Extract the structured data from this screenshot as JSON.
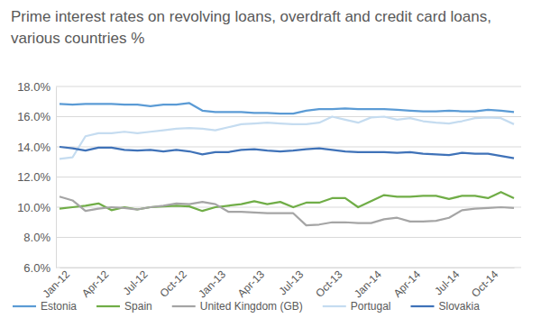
{
  "chart_data": {
    "type": "line",
    "title": "Prime interest rates on revolving loans, overdraft and credit card loans, various countries %",
    "categories": [
      "Jan-12",
      null,
      null,
      "Apr-12",
      null,
      null,
      "Jul-12",
      null,
      null,
      "Oct-12",
      null,
      null,
      "Jan-13",
      null,
      null,
      "Apr-13",
      null,
      null,
      "Jul-13",
      null,
      null,
      "Oct-13",
      null,
      null,
      "Jan-14",
      null,
      null,
      "Apr-14",
      null,
      null,
      "Jul-14",
      null,
      null,
      "Oct-14",
      null,
      null
    ],
    "series": [
      {
        "name": "Estonia",
        "color": "#5b9bd5",
        "values": [
          16.85,
          16.8,
          16.85,
          16.85,
          16.85,
          16.8,
          16.8,
          16.7,
          16.8,
          16.8,
          16.9,
          16.4,
          16.3,
          16.3,
          16.3,
          16.25,
          16.25,
          16.2,
          16.2,
          16.4,
          16.5,
          16.5,
          16.55,
          16.5,
          16.5,
          16.5,
          16.45,
          16.4,
          16.35,
          16.35,
          16.4,
          16.35,
          16.35,
          16.45,
          16.4,
          16.3
        ]
      },
      {
        "name": "Spain",
        "color": "#70ad47",
        "values": [
          9.9,
          10.0,
          10.1,
          10.25,
          9.8,
          10.0,
          9.85,
          10.0,
          10.05,
          10.1,
          10.05,
          9.75,
          10.0,
          10.1,
          10.2,
          10.4,
          10.2,
          10.35,
          10.0,
          10.3,
          10.3,
          10.6,
          10.6,
          10.0,
          10.4,
          10.8,
          10.7,
          10.7,
          10.75,
          10.75,
          10.55,
          10.75,
          10.75,
          10.6,
          11.0,
          10.6
        ]
      },
      {
        "name": "United Kingdom (GB)",
        "color": "#a5a5a5",
        "values": [
          10.7,
          10.45,
          9.75,
          9.9,
          10.0,
          9.95,
          9.85,
          10.0,
          10.1,
          10.25,
          10.2,
          10.35,
          10.2,
          9.7,
          9.7,
          9.65,
          9.6,
          9.6,
          9.6,
          8.8,
          8.85,
          9.0,
          9.0,
          8.95,
          8.95,
          9.2,
          9.3,
          9.05,
          9.05,
          9.1,
          9.3,
          9.8,
          9.9,
          9.95,
          10.0,
          9.95
        ]
      },
      {
        "name": "Portugal",
        "color": "#c5dcf0",
        "values": [
          13.2,
          13.3,
          14.7,
          14.9,
          14.9,
          15.0,
          14.9,
          15.0,
          15.1,
          15.2,
          15.25,
          15.2,
          15.1,
          15.3,
          15.5,
          15.55,
          15.6,
          15.55,
          15.5,
          15.5,
          15.6,
          16.0,
          15.8,
          15.6,
          15.95,
          16.0,
          15.8,
          15.9,
          15.7,
          15.6,
          15.55,
          15.7,
          15.9,
          15.95,
          15.9,
          15.5
        ]
      },
      {
        "name": "Slovakia",
        "color": "#3f72b8",
        "values": [
          14.0,
          13.9,
          13.75,
          13.95,
          13.95,
          13.8,
          13.75,
          13.8,
          13.7,
          13.8,
          13.7,
          13.5,
          13.65,
          13.65,
          13.8,
          13.85,
          13.75,
          13.7,
          13.75,
          13.85,
          13.9,
          13.8,
          13.7,
          13.65,
          13.65,
          13.65,
          13.6,
          13.65,
          13.55,
          13.5,
          13.45,
          13.6,
          13.55,
          13.55,
          13.4,
          13.25
        ]
      }
    ],
    "ylim": [
      6,
      18
    ],
    "yticks": [
      {
        "value": 6,
        "label": "6.0%"
      },
      {
        "value": 8,
        "label": "8.0%"
      },
      {
        "value": 10,
        "label": "10.0%"
      },
      {
        "value": 12,
        "label": "12.0%"
      },
      {
        "value": 14,
        "label": "14.0%"
      },
      {
        "value": 16,
        "label": "16.0%"
      },
      {
        "value": 18,
        "label": "18.0%"
      }
    ],
    "grid": true,
    "legend": "bottom"
  }
}
